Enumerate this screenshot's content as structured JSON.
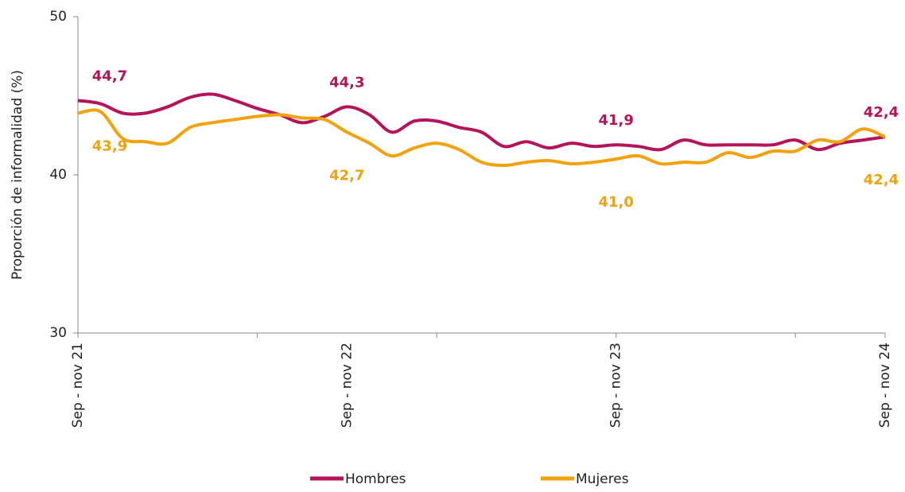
{
  "chart_data": {
    "type": "line",
    "y_label": "Proporción de informalidad (%)",
    "categories": [
      "Sep - nov 21",
      null,
      null,
      null,
      null,
      null,
      null,
      null,
      null,
      null,
      null,
      null,
      "Sep - nov 22",
      null,
      null,
      null,
      null,
      null,
      null,
      null,
      null,
      null,
      null,
      null,
      "Sep - nov 23",
      null,
      null,
      null,
      null,
      null,
      null,
      null,
      null,
      null,
      null,
      null,
      "Sep - nov 24"
    ],
    "ylim": [
      30,
      50
    ],
    "yticks": [
      30,
      40,
      50
    ],
    "series": [
      {
        "name": "Hombres",
        "color": "#b5135a",
        "values": [
          44.7,
          44.5,
          43.9,
          43.9,
          44.3,
          44.9,
          45.1,
          44.7,
          44.2,
          43.8,
          43.3,
          43.7,
          44.3,
          43.8,
          42.7,
          43.4,
          43.4,
          43.0,
          42.7,
          41.8,
          42.1,
          41.7,
          42.0,
          41.8,
          41.9,
          41.8,
          41.6,
          42.2,
          41.9,
          41.9,
          41.9,
          41.9,
          42.2,
          41.6,
          42.0,
          42.2,
          42.4
        ],
        "value_labels": [
          "44,7",
          null,
          null,
          null,
          null,
          null,
          null,
          null,
          null,
          null,
          null,
          null,
          "44,3",
          null,
          null,
          null,
          null,
          null,
          null,
          null,
          null,
          null,
          null,
          null,
          "41,9",
          null,
          null,
          null,
          null,
          null,
          null,
          null,
          null,
          null,
          null,
          null,
          "42,4"
        ]
      },
      {
        "name": "Mujeres",
        "color": "#f2a20c",
        "values": [
          43.9,
          44.0,
          42.3,
          42.1,
          42.0,
          43.0,
          43.3,
          43.5,
          43.7,
          43.8,
          43.6,
          43.5,
          42.7,
          42.0,
          41.2,
          41.7,
          42.0,
          41.6,
          40.8,
          40.6,
          40.8,
          40.9,
          40.7,
          40.8,
          41.0,
          41.2,
          40.7,
          40.8,
          40.8,
          41.4,
          41.1,
          41.5,
          41.5,
          42.2,
          42.1,
          42.9,
          42.4
        ],
        "value_labels": [
          "43,9",
          null,
          null,
          null,
          null,
          null,
          null,
          null,
          null,
          null,
          null,
          null,
          "42,7",
          null,
          null,
          null,
          null,
          null,
          null,
          null,
          null,
          null,
          null,
          null,
          "41,0",
          null,
          null,
          null,
          null,
          null,
          null,
          null,
          null,
          null,
          null,
          null,
          "42,4"
        ]
      }
    ]
  }
}
